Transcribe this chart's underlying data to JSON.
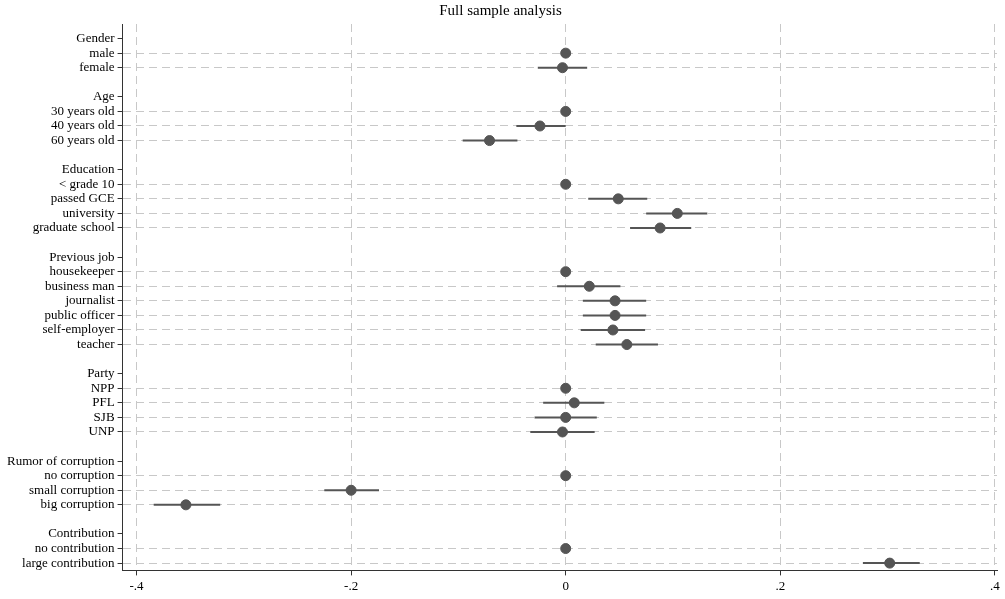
{
  "chart_data": {
    "type": "scatter",
    "orientation": "horizontal",
    "title": "Full sample analysis",
    "categories": [
      "Gender",
      "male",
      "female",
      null,
      "Age",
      "30 years old",
      "40 years old",
      "60 years old",
      null,
      "Education",
      "< grade 10",
      "passed GCE",
      "university",
      "graduate school",
      null,
      "Previous job",
      "housekeeper",
      "business man",
      "journalist",
      "public officer",
      "self-employer",
      "teacher",
      null,
      "Party",
      "NPP",
      "PFL",
      "SJB",
      "UNP",
      null,
      "Rumor of corruption",
      "no corruption",
      "small corruption",
      "big corruption",
      null,
      "Contribution",
      "no contribution",
      "large contribution"
    ],
    "values": [
      null,
      0,
      -0.003,
      null,
      null,
      0,
      -0.024,
      -0.071,
      null,
      null,
      0,
      0.049,
      0.104,
      0.088,
      null,
      null,
      0,
      0.022,
      0.046,
      0.046,
      0.044,
      0.057,
      null,
      null,
      0,
      0.008,
      0,
      -0.003,
      null,
      null,
      0,
      -0.2,
      -0.354,
      null,
      null,
      0,
      0.302
    ],
    "errors": [
      null,
      null,
      [
        -0.026,
        0.02
      ],
      null,
      null,
      null,
      [
        -0.046,
        0
      ],
      [
        -0.096,
        -0.045
      ],
      null,
      null,
      null,
      [
        0.021,
        0.076
      ],
      [
        0.075,
        0.132
      ],
      [
        0.06,
        0.117
      ],
      null,
      null,
      null,
      [
        -0.008,
        0.051
      ],
      [
        0.016,
        0.075
      ],
      [
        0.016,
        0.075
      ],
      [
        0.014,
        0.074
      ],
      [
        0.028,
        0.086
      ],
      null,
      null,
      null,
      [
        -0.021,
        0.036
      ],
      [
        -0.029,
        0.029
      ],
      [
        -0.033,
        0.027
      ],
      null,
      null,
      null,
      [
        -0.225,
        -0.174
      ],
      [
        -0.384,
        -0.322
      ],
      null,
      null,
      null,
      [
        0.277,
        0.33
      ]
    ],
    "color": "#555555",
    "marker": "circle",
    "grid": true,
    "xlim": [
      -0.413,
      0.402
    ],
    "xticks": [
      {
        "value": -0.4,
        "label": "-.4"
      },
      {
        "value": -0.2,
        "label": "-.2"
      },
      0,
      {
        "value": 0.2,
        "label": ".2"
      },
      {
        "value": 0.4,
        "label": ".4"
      }
    ]
  }
}
